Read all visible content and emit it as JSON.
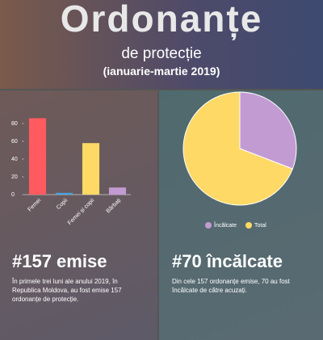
{
  "header": {
    "title": "Ordonanțe",
    "subtitle": "de protecție",
    "period": "(ianuarie-martie 2019)"
  },
  "chart_data": [
    {
      "type": "bar",
      "categories": [
        "Femei",
        "Copii",
        "Femei și copii",
        "Bărbați"
      ],
      "values": [
        86,
        2,
        58,
        8
      ],
      "colors": [
        "#ff5a5f",
        "#4aa3df",
        "#ffd966",
        "#c39bd3"
      ],
      "ylim": [
        0,
        90
      ],
      "yticks": [
        0,
        20,
        40,
        60,
        80
      ],
      "grid": false
    },
    {
      "type": "pie",
      "categories": [
        "Încălcate",
        "Total"
      ],
      "values": [
        70,
        157
      ],
      "colors": [
        "#c39bd3",
        "#ffd966"
      ],
      "legend": "bottom"
    }
  ],
  "panels": [
    {
      "heading": "#157 emise",
      "text": "În primele trei luni ale anului 2019, în Republica Moldova, au fost emise 157 ordonanțe de protecție."
    },
    {
      "heading": "#70 încălcate",
      "text": "Din cele 157 ordonanțe emise, 70 au fost încălcate de către acuzați."
    }
  ]
}
